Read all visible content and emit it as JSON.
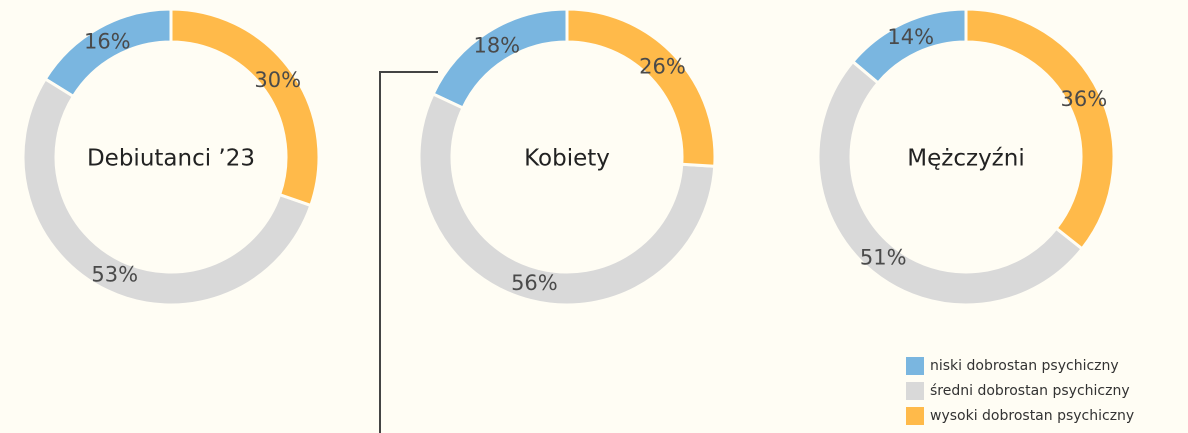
{
  "chart_data": [
    {
      "type": "pie",
      "title": "Debiutanci ’23",
      "values": [
        16,
        53,
        30
      ],
      "value_labels": [
        "16%",
        "53%",
        "30%"
      ]
    },
    {
      "type": "pie",
      "title": "Kobiety",
      "values": [
        18,
        56,
        26
      ],
      "value_labels": [
        "18%",
        "56%",
        "26%"
      ]
    },
    {
      "type": "pie",
      "title": "Mężczyźni",
      "values": [
        14,
        51,
        36
      ],
      "value_labels": [
        "14%",
        "51%",
        "36%"
      ]
    }
  ],
  "legend": {
    "categories": [
      "niski dobrostan psychiczny",
      "średni dobrostan psychiczny",
      "wysoki dobrostan psychiczny"
    ],
    "colors": [
      "#7ab6e0",
      "#d9d9d9",
      "#ffba4a"
    ]
  },
  "direction": "counterclockwise"
}
